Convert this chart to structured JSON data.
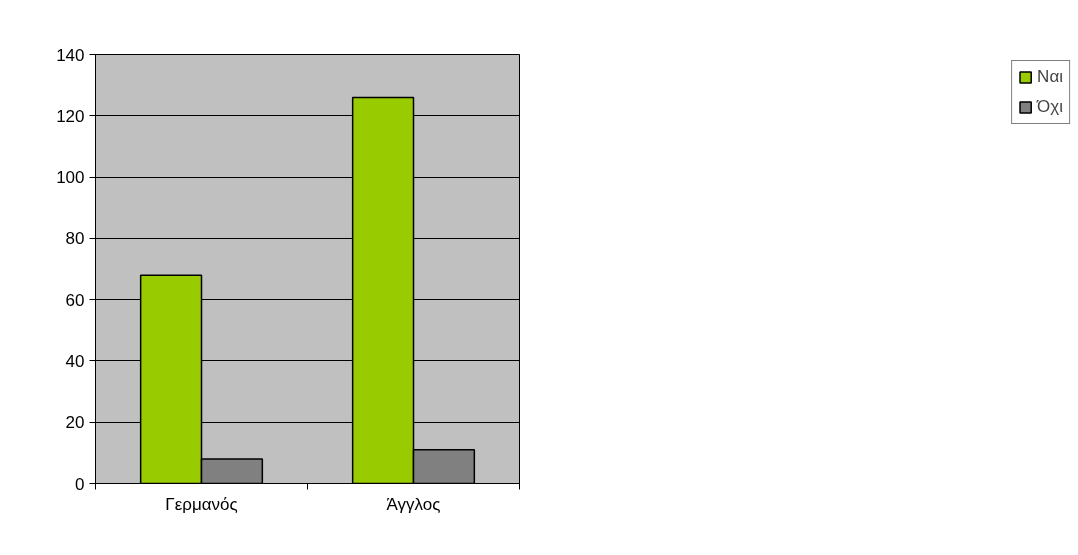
{
  "chart_data": {
    "type": "bar",
    "categories": [
      "Γερμανός",
      "Άγγλος"
    ],
    "series": [
      {
        "name": "Ναι",
        "color": "#99cc00",
        "values": [
          68,
          126
        ]
      },
      {
        "name": "Όχι",
        "color": "#808080",
        "values": [
          8,
          11
        ]
      }
    ],
    "ylim": [
      0,
      140
    ],
    "yticks": [
      0,
      20,
      40,
      60,
      80,
      100,
      120,
      140
    ],
    "grid": "y",
    "legend": "right"
  }
}
